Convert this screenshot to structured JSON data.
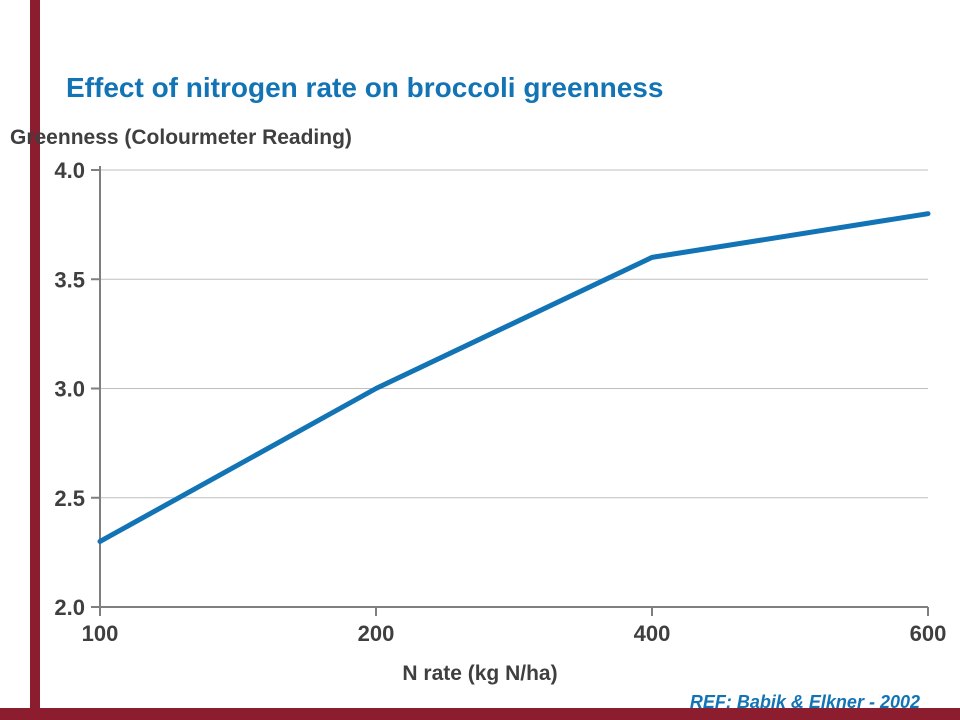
{
  "title": "Effect of nitrogen rate on broccoli greenness",
  "ref_note": "REF: Babik & Elkner - 2002",
  "colors": {
    "title_blue": "#1273B5",
    "line_blue": "#1273B5",
    "accent_maroon": "#8C1D2E",
    "axis_gray": "#7F7F7F",
    "grid_gray": "#BFBFBF",
    "text_gray": "#3F3F3F"
  },
  "chart_data": {
    "type": "line",
    "title": "Effect of nitrogen rate on broccoli greenness",
    "ylabel": "Greenness (Colourmeter Reading)",
    "xlabel": "N rate (kg N/ha)",
    "categories": [
      "100",
      "200",
      "400",
      "600"
    ],
    "values": [
      2.3,
      3.0,
      3.6,
      3.8
    ],
    "ylim": [
      2.0,
      4.0
    ],
    "yticks": [
      2.0,
      2.5,
      3.0,
      3.5,
      4.0
    ],
    "grid": "horizontal-only",
    "legend": "none",
    "x_spacing": "equal-categorical",
    "annotation": "REF: Babik & Elkner - 2002"
  }
}
